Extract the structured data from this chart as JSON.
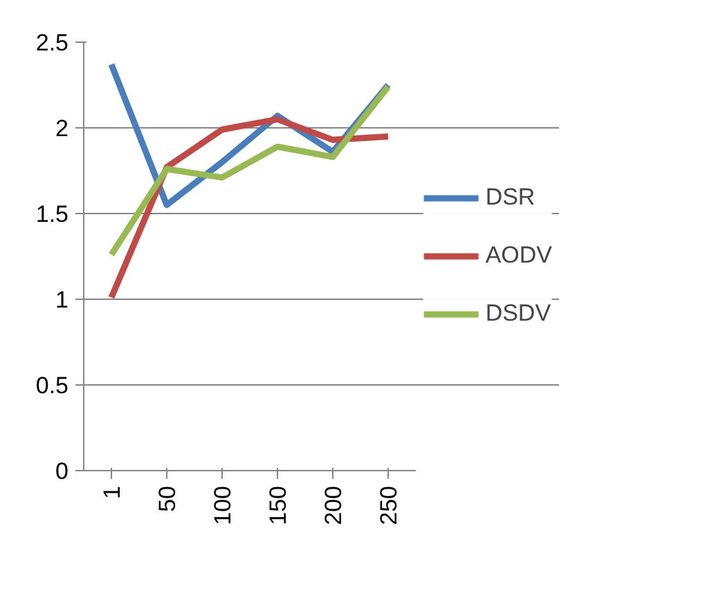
{
  "chart_data": {
    "type": "line",
    "categories": [
      "1",
      "50",
      "100",
      "150",
      "200",
      "250"
    ],
    "series": [
      {
        "name": "DSR",
        "color": "#4a7ebb",
        "values": [
          2.37,
          1.55,
          1.8,
          2.07,
          1.86,
          2.25
        ]
      },
      {
        "name": "AODV",
        "color": "#be4b48",
        "values": [
          1.01,
          1.77,
          1.99,
          2.05,
          1.93,
          1.95
        ]
      },
      {
        "name": "DSDV",
        "color": "#98b954",
        "values": [
          1.26,
          1.76,
          1.71,
          1.89,
          1.83,
          2.24
        ]
      }
    ],
    "ylim": [
      0,
      2.5
    ],
    "yticks": [
      0,
      0.5,
      1,
      1.5,
      2,
      2.5
    ],
    "grid": "y",
    "legend": "right",
    "marker": "none",
    "line_style": "solid"
  }
}
